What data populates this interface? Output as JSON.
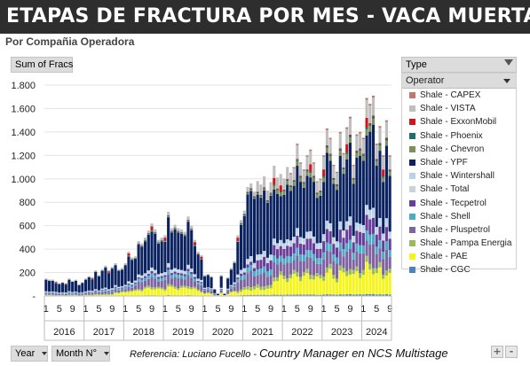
{
  "title": "ETAPAS DE FRACTURA POR MES -  VACA MUERTA",
  "subtitle": "Por Compañia Operadora",
  "value_field": "Sum of Fracs",
  "type_field": "Type",
  "operator_field": "Operator",
  "year_field": "Year",
  "month_field": "Month N°",
  "reference_prefix": "Referencia:  Luciano Fucello - ",
  "reference_role": "Country Manager en NCS Multistage",
  "corner_buttons": [
    "+",
    "-"
  ],
  "icons": [
    "filter-icon",
    "chevron-down-icon"
  ],
  "chart_data": {
    "type": "bar",
    "stacked": true,
    "ylim": [
      0,
      1800
    ],
    "yticks": [
      "-",
      "200",
      "400",
      "600",
      "800",
      "1.000",
      "1.200",
      "1.400",
      "1.600",
      "1.800"
    ],
    "month_labels": [
      "1",
      "5",
      "9"
    ],
    "years": [
      "2016",
      "2017",
      "2018",
      "2019",
      "2020",
      "2021",
      "2022",
      "2023",
      "2024"
    ],
    "months_per_year": [
      12,
      12,
      12,
      12,
      12,
      12,
      12,
      12,
      9
    ],
    "grid": true,
    "legend_position": "right",
    "series": [
      {
        "name": "Shale - CAPEX",
        "color": "#c0796d"
      },
      {
        "name": "Shale - VISTA",
        "color": "#bfbfbf"
      },
      {
        "name": "Shale - ExxonMobil",
        "color": "#d4141b"
      },
      {
        "name": "Shale - Phoenix",
        "color": "#1f6e6e"
      },
      {
        "name": "Shale - Chevron",
        "color": "#7f8f5a"
      },
      {
        "name": "Shale - YPF",
        "color": "#0b2260"
      },
      {
        "name": "Shale - Wintershall",
        "color": "#b7d2ea"
      },
      {
        "name": "Shale - Total",
        "color": "#c9d3dc"
      },
      {
        "name": "Shale - Tecpetrol",
        "color": "#6a3d9a"
      },
      {
        "name": "Shale - Shell",
        "color": "#4bacc6"
      },
      {
        "name": "Shale - Pluspetrol",
        "color": "#8064a2"
      },
      {
        "name": "Shale - Pampa Energia",
        "color": "#9bbb59"
      },
      {
        "name": "Shale - PAE",
        "color": "#f5f51a"
      },
      {
        "name": "Shale - CGC",
        "color": "#4f81bd"
      }
    ],
    "totals": [
      150,
      140,
      140,
      125,
      110,
      120,
      110,
      150,
      130,
      140,
      100,
      120,
      150,
      170,
      160,
      220,
      180,
      230,
      260,
      220,
      250,
      280,
      230,
      240,
      280,
      380,
      330,
      340,
      470,
      450,
      500,
      560,
      620,
      570,
      480,
      500,
      520,
      720,
      580,
      610,
      580,
      570,
      550,
      680,
      600,
      480,
      380,
      350,
      180,
      190,
      170,
      60,
      20,
      180,
      20,
      160,
      240,
      300,
      520,
      650,
      730,
      930,
      960,
      890,
      980,
      950,
      1020,
      900,
      970,
      1110,
      1010,
      1040,
      1000,
      1100,
      1050,
      1100,
      1300,
      1140,
      1080,
      1200,
      1250,
      1140,
      980,
      1000,
      1200,
      1430,
      1350,
      1120,
      1060,
      1400,
      1220,
      1440,
      1530,
      1120,
      1380,
      1400,
      1350,
      1690,
      1640,
      1710,
      1300,
      1450,
      1200,
      1500,
      1200
    ]
  }
}
